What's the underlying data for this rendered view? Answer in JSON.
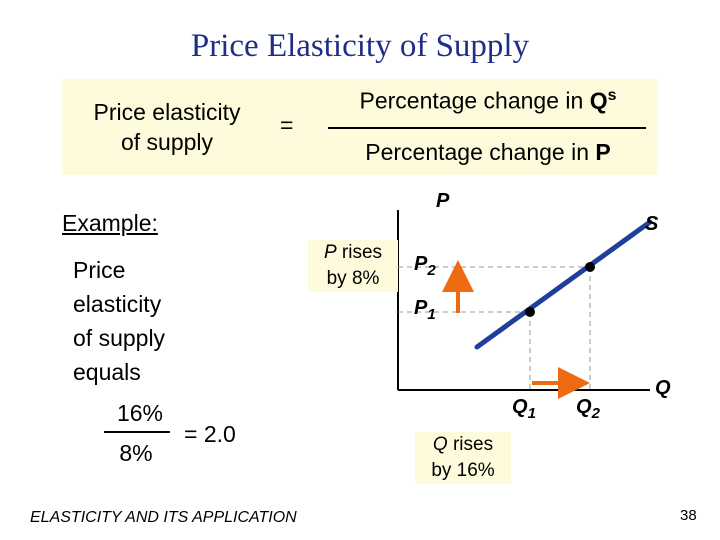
{
  "title": "Price Elasticity of Supply",
  "formula": {
    "lhs_line1": "Price elasticity",
    "lhs_line2": "of supply",
    "equals": "=",
    "numerator_text": "Percentage change in ",
    "numerator_var": "Q",
    "numerator_sup": "s",
    "denominator_text": "Percentage change in ",
    "denominator_var": "P"
  },
  "example": {
    "heading": "Example:",
    "line1": "Price",
    "line2": "elasticity",
    "line3": "of supply",
    "line4": "equals",
    "numerator": "16%",
    "denominator": "8%",
    "result": "= 2.0"
  },
  "graph": {
    "y_axis_label": "P",
    "x_axis_label": "Q",
    "curve_label": "S",
    "p1_label": "P",
    "p1_sub": "1",
    "p2_label": "P",
    "p2_sub": "2",
    "q1_label": "Q",
    "q1_sub": "1",
    "q2_label": "Q",
    "q2_sub": "2",
    "p_rises_var": "P",
    "p_rises_text": " rises",
    "p_rises_line2": "by 8%",
    "q_rises_var": "Q",
    "q_rises_text": " rises",
    "q_rises_line2": "by 16%",
    "curve_color": "#1f3f9a",
    "arrow_color": "#ee6a10"
  },
  "footer": "ELASTICITY AND ITS APPLICATION",
  "page_number": "38"
}
